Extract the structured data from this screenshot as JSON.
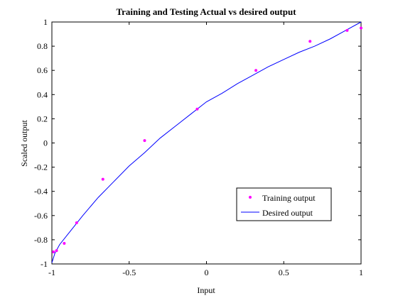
{
  "chart_data": {
    "type": "scatter",
    "title": "Training and Testing Actual vs desired output",
    "xlabel": "Input",
    "ylabel": "Scaled output",
    "xlim": [
      -1,
      1
    ],
    "ylim": [
      -1,
      1
    ],
    "xticks": [
      "-1",
      "-0.5",
      "0",
      "0.5",
      "1"
    ],
    "yticks": [
      "-1",
      "-0.8",
      "-0.6",
      "-0.4",
      "-0.2",
      "0",
      "0.2",
      "0.4",
      "0.6",
      "0.8",
      "1"
    ],
    "grid": false,
    "legend_position": "bottom-right",
    "series": [
      {
        "name": "Training output",
        "kind": "markers",
        "color": "#ff00ff",
        "x": [
          -0.99,
          -0.97,
          -0.92,
          -0.84,
          -0.67,
          -0.4,
          -0.06,
          0.32,
          0.67,
          0.91,
          1.0
        ],
        "y": [
          -0.9,
          -0.89,
          -0.83,
          -0.66,
          -0.3,
          0.02,
          0.28,
          0.6,
          0.84,
          0.93,
          0.95
        ]
      },
      {
        "name": "Desired output",
        "kind": "line",
        "color": "#0000ff",
        "x": [
          -1.0,
          -0.98,
          -0.95,
          -0.9,
          -0.85,
          -0.8,
          -0.7,
          -0.6,
          -0.5,
          -0.4,
          -0.3,
          -0.2,
          -0.1,
          0.0,
          0.1,
          0.2,
          0.3,
          0.4,
          0.5,
          0.6,
          0.7,
          0.8,
          0.9,
          1.0
        ],
        "y": [
          -0.99,
          -0.91,
          -0.84,
          -0.76,
          -0.68,
          -0.6,
          -0.45,
          -0.32,
          -0.19,
          -0.08,
          0.04,
          0.14,
          0.24,
          0.34,
          0.41,
          0.49,
          0.56,
          0.63,
          0.69,
          0.75,
          0.8,
          0.86,
          0.93,
          1.0
        ]
      }
    ]
  }
}
